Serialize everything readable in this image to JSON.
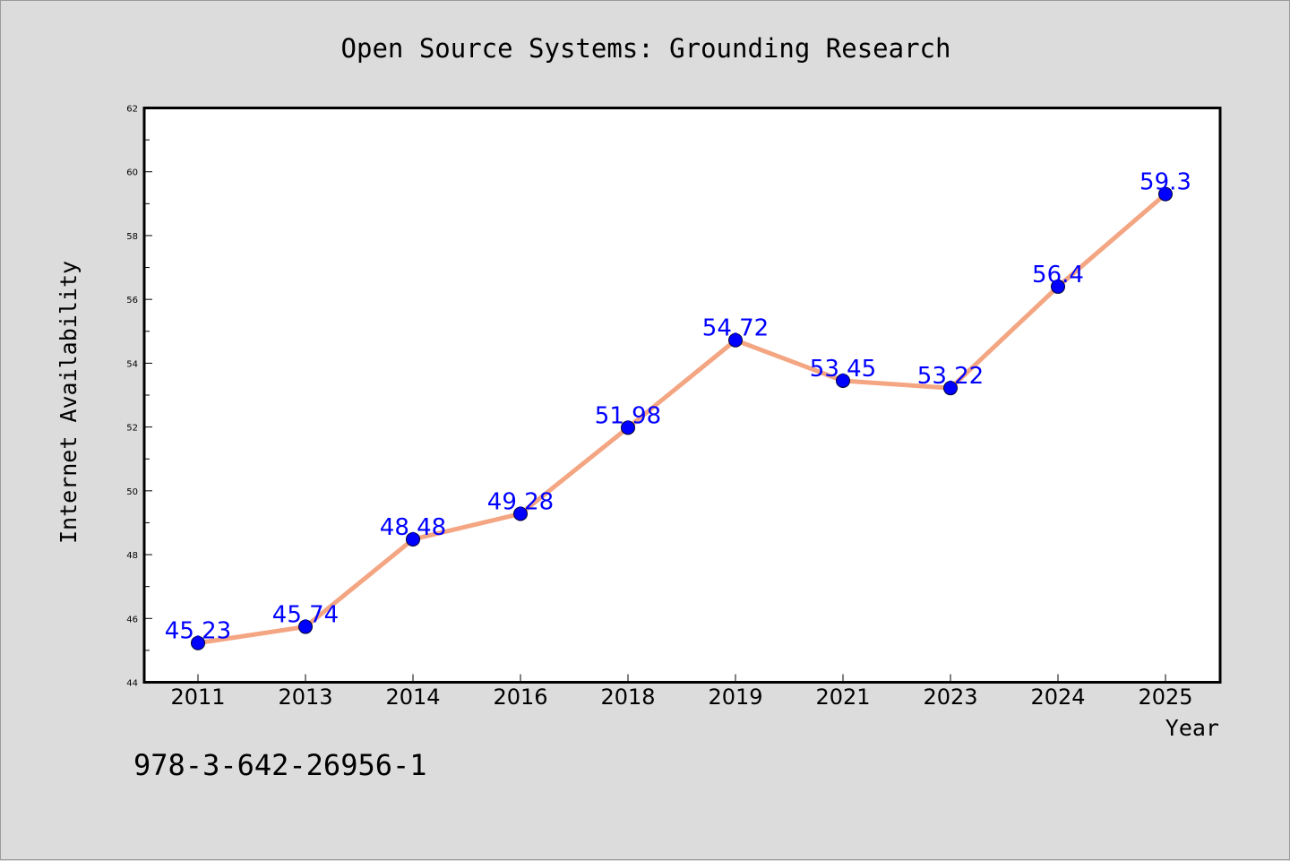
{
  "chart_data": {
    "type": "line",
    "title": "Open Source Systems: Grounding Research",
    "xlabel": "Year",
    "ylabel": "Internet Availability",
    "categories": [
      "2011",
      "2013",
      "2014",
      "2016",
      "2018",
      "2019",
      "2021",
      "2023",
      "2024",
      "2025"
    ],
    "series": [
      {
        "values": [
          45.23,
          45.74,
          48.48,
          49.28,
          51.98,
          54.72,
          53.45,
          53.22,
          56.4,
          59.3
        ],
        "labels": [
          "45.23",
          "45.74",
          "48.48",
          "49.28",
          "51.98",
          "54.72",
          "53.45",
          "53.22",
          "56.4",
          "59.3"
        ],
        "line_color": "#f4a582",
        "marker_color": "#0000ff"
      }
    ],
    "ylim": [
      44,
      62
    ],
    "yticks": [
      "44",
      "46",
      "48",
      "50",
      "52",
      "54",
      "56",
      "58",
      "60",
      "62"
    ],
    "grid": false,
    "legend": "none"
  },
  "footer": {
    "isbn": "978-3-642-26956-1"
  }
}
